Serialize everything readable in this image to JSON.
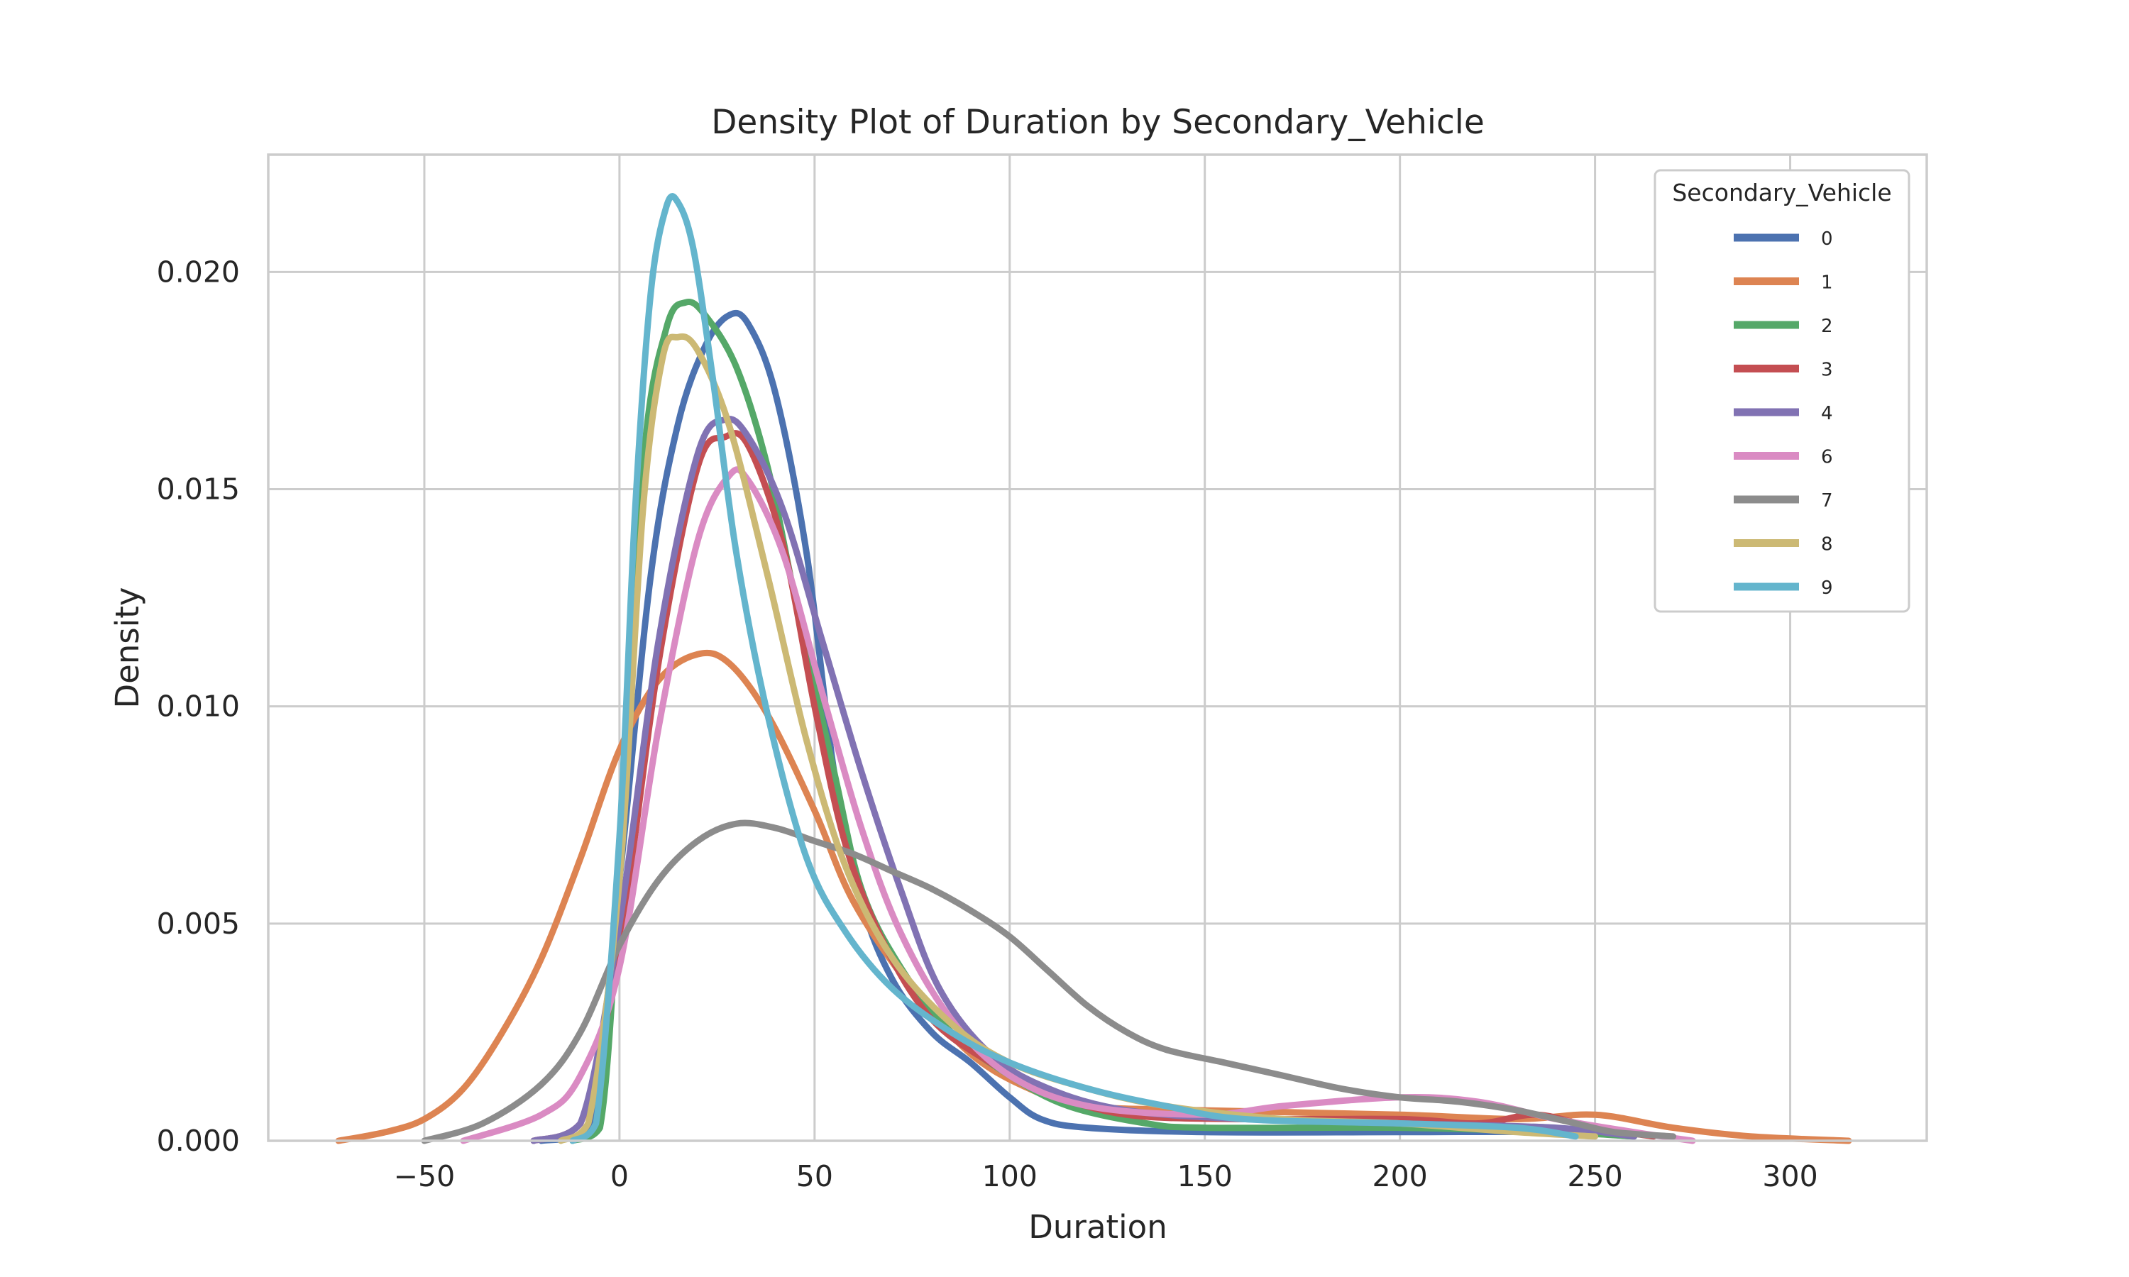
{
  "chart_data": {
    "type": "line",
    "title": "Density Plot of Duration by Secondary_Vehicle",
    "xlabel": "Duration",
    "ylabel": "Density",
    "xlim": [
      -90,
      335
    ],
    "ylim": [
      0,
      0.0227
    ],
    "x_ticks": [
      -50,
      0,
      50,
      100,
      150,
      200,
      250,
      300
    ],
    "x_tick_labels": [
      "−50",
      "0",
      "50",
      "100",
      "150",
      "200",
      "250",
      "300"
    ],
    "y_ticks": [
      0,
      0.005,
      0.01,
      0.015,
      0.02
    ],
    "y_tick_labels": [
      "0.000",
      "0.005",
      "0.010",
      "0.015",
      "0.020"
    ],
    "grid": true,
    "legend": {
      "title": "Secondary_Vehicle",
      "placement": "top-right"
    },
    "series": [
      {
        "name": "0",
        "color": "#4c72b0",
        "points": [
          [
            -20,
            0
          ],
          [
            -8,
            0.0002
          ],
          [
            0,
            0.006
          ],
          [
            8,
            0.013
          ],
          [
            15,
            0.0165
          ],
          [
            22,
            0.0183
          ],
          [
            28,
            0.019
          ],
          [
            33,
            0.0188
          ],
          [
            40,
            0.0172
          ],
          [
            48,
            0.0135
          ],
          [
            55,
            0.0085
          ],
          [
            62,
            0.0055
          ],
          [
            70,
            0.0037
          ],
          [
            80,
            0.0025
          ],
          [
            90,
            0.0018
          ],
          [
            100,
            0.001
          ],
          [
            108,
            0.0005
          ],
          [
            120,
            0.0003
          ],
          [
            150,
            0.0002
          ],
          [
            200,
            0.0002
          ],
          [
            240,
            0.0002
          ],
          [
            260,
            0.0001
          ]
        ]
      },
      {
        "name": "1",
        "color": "#dd8452",
        "points": [
          [
            -72,
            0
          ],
          [
            -60,
            0.0002
          ],
          [
            -50,
            0.0005
          ],
          [
            -40,
            0.0012
          ],
          [
            -30,
            0.0025
          ],
          [
            -20,
            0.0042
          ],
          [
            -10,
            0.0065
          ],
          [
            0,
            0.009
          ],
          [
            10,
            0.0106
          ],
          [
            20,
            0.0112
          ],
          [
            28,
            0.011
          ],
          [
            38,
            0.0098
          ],
          [
            50,
            0.0076
          ],
          [
            60,
            0.0055
          ],
          [
            75,
            0.0035
          ],
          [
            90,
            0.002
          ],
          [
            105,
            0.0012
          ],
          [
            120,
            0.0008
          ],
          [
            150,
            0.0007
          ],
          [
            200,
            0.0006
          ],
          [
            230,
            0.0005
          ],
          [
            250,
            0.0006
          ],
          [
            270,
            0.0003
          ],
          [
            290,
            0.0001
          ],
          [
            315,
            0
          ]
        ]
      },
      {
        "name": "2",
        "color": "#55a868",
        "points": [
          [
            -12,
            0
          ],
          [
            -5,
            0.0003
          ],
          [
            0,
            0.006
          ],
          [
            6,
            0.0155
          ],
          [
            12,
            0.0187
          ],
          [
            17,
            0.0193
          ],
          [
            22,
            0.019
          ],
          [
            30,
            0.0178
          ],
          [
            38,
            0.0155
          ],
          [
            45,
            0.0125
          ],
          [
            55,
            0.0085
          ],
          [
            62,
            0.0058
          ],
          [
            72,
            0.004
          ],
          [
            85,
            0.0025
          ],
          [
            100,
            0.0015
          ],
          [
            115,
            0.0008
          ],
          [
            135,
            0.0004
          ],
          [
            150,
            0.0003
          ],
          [
            200,
            0.0003
          ],
          [
            240,
            0.0002
          ],
          [
            260,
            0.0001
          ]
        ]
      },
      {
        "name": "3",
        "color": "#c44e52",
        "points": [
          [
            -22,
            0
          ],
          [
            -10,
            0.0004
          ],
          [
            0,
            0.0045
          ],
          [
            10,
            0.011
          ],
          [
            20,
            0.0155
          ],
          [
            27,
            0.0162
          ],
          [
            33,
            0.016
          ],
          [
            42,
            0.0137
          ],
          [
            50,
            0.01
          ],
          [
            58,
            0.0068
          ],
          [
            68,
            0.0045
          ],
          [
            80,
            0.0028
          ],
          [
            95,
            0.0018
          ],
          [
            110,
            0.0011
          ],
          [
            130,
            0.0006
          ],
          [
            160,
            0.0005
          ],
          [
            200,
            0.0005
          ],
          [
            220,
            0.0004
          ],
          [
            235,
            0.0006
          ],
          [
            250,
            0.0003
          ],
          [
            265,
            0.0001
          ]
        ]
      },
      {
        "name": "4",
        "color": "#8172b3",
        "points": [
          [
            -22,
            0
          ],
          [
            -10,
            0.0004
          ],
          [
            0,
            0.005
          ],
          [
            10,
            0.0115
          ],
          [
            20,
            0.0158
          ],
          [
            27,
            0.0166
          ],
          [
            33,
            0.0162
          ],
          [
            42,
            0.0145
          ],
          [
            52,
            0.0115
          ],
          [
            62,
            0.0085
          ],
          [
            72,
            0.0058
          ],
          [
            82,
            0.0035
          ],
          [
            95,
            0.002
          ],
          [
            110,
            0.0012
          ],
          [
            130,
            0.0007
          ],
          [
            160,
            0.0005
          ],
          [
            200,
            0.0004
          ],
          [
            240,
            0.0003
          ],
          [
            260,
            0.0001
          ]
        ]
      },
      {
        "name": "6",
        "color": "#da8bc3",
        "points": [
          [
            -40,
            0
          ],
          [
            -20,
            0.0006
          ],
          [
            -10,
            0.0015
          ],
          [
            0,
            0.004
          ],
          [
            10,
            0.0095
          ],
          [
            20,
            0.0138
          ],
          [
            28,
            0.0153
          ],
          [
            33,
            0.0152
          ],
          [
            42,
            0.0135
          ],
          [
            52,
            0.0103
          ],
          [
            62,
            0.0072
          ],
          [
            72,
            0.0048
          ],
          [
            85,
            0.0028
          ],
          [
            100,
            0.0015
          ],
          [
            120,
            0.0008
          ],
          [
            150,
            0.0006
          ],
          [
            170,
            0.0008
          ],
          [
            200,
            0.001
          ],
          [
            220,
            0.0009
          ],
          [
            240,
            0.0005
          ],
          [
            260,
            0.0002
          ],
          [
            275,
            0
          ]
        ]
      },
      {
        "name": "7",
        "color": "#8c8c8c",
        "points": [
          [
            -50,
            0
          ],
          [
            -35,
            0.0004
          ],
          [
            -20,
            0.0013
          ],
          [
            -10,
            0.0025
          ],
          [
            0,
            0.0045
          ],
          [
            10,
            0.006
          ],
          [
            20,
            0.0069
          ],
          [
            30,
            0.0073
          ],
          [
            40,
            0.0072
          ],
          [
            50,
            0.0069
          ],
          [
            60,
            0.0066
          ],
          [
            70,
            0.0062
          ],
          [
            80,
            0.0058
          ],
          [
            90,
            0.0053
          ],
          [
            100,
            0.0047
          ],
          [
            110,
            0.0039
          ],
          [
            120,
            0.0031
          ],
          [
            130,
            0.0025
          ],
          [
            140,
            0.0021
          ],
          [
            155,
            0.0018
          ],
          [
            170,
            0.0015
          ],
          [
            185,
            0.0012
          ],
          [
            200,
            0.001
          ],
          [
            215,
            0.0009
          ],
          [
            230,
            0.0007
          ],
          [
            245,
            0.0004
          ],
          [
            255,
            0.0002
          ],
          [
            270,
            0.0001
          ]
        ]
      },
      {
        "name": "8",
        "color": "#ccb974",
        "points": [
          [
            -15,
            0
          ],
          [
            -8,
            0.0004
          ],
          [
            0,
            0.006
          ],
          [
            6,
            0.0145
          ],
          [
            11,
            0.018
          ],
          [
            15,
            0.0185
          ],
          [
            20,
            0.0182
          ],
          [
            28,
            0.0165
          ],
          [
            38,
            0.013
          ],
          [
            48,
            0.0092
          ],
          [
            58,
            0.0063
          ],
          [
            70,
            0.0042
          ],
          [
            85,
            0.0027
          ],
          [
            100,
            0.0018
          ],
          [
            120,
            0.0012
          ],
          [
            140,
            0.0008
          ],
          [
            170,
            0.0005
          ],
          [
            200,
            0.0004
          ],
          [
            230,
            0.0002
          ],
          [
            250,
            0.0001
          ]
        ]
      },
      {
        "name": "9",
        "color": "#64b5cd",
        "points": [
          [
            -12,
            0
          ],
          [
            -6,
            0.0004
          ],
          [
            0,
            0.007
          ],
          [
            4,
            0.0145
          ],
          [
            8,
            0.0195
          ],
          [
            12,
            0.0215
          ],
          [
            15,
            0.0216
          ],
          [
            19,
            0.0205
          ],
          [
            24,
            0.0175
          ],
          [
            30,
            0.0135
          ],
          [
            38,
            0.0098
          ],
          [
            48,
            0.0065
          ],
          [
            58,
            0.0048
          ],
          [
            70,
            0.0035
          ],
          [
            85,
            0.0025
          ],
          [
            100,
            0.0018
          ],
          [
            120,
            0.0012
          ],
          [
            140,
            0.0008
          ],
          [
            160,
            0.0005
          ],
          [
            200,
            0.0004
          ],
          [
            230,
            0.0003
          ],
          [
            245,
            0.0001
          ]
        ]
      }
    ]
  }
}
